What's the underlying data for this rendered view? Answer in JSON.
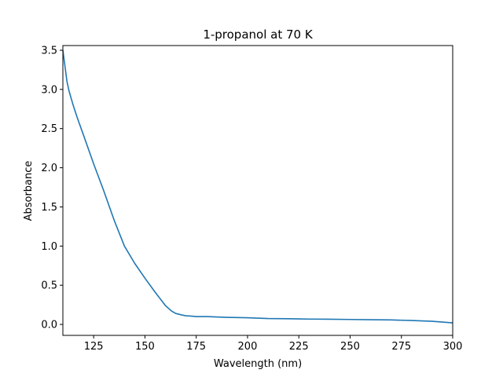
{
  "chart_data": {
    "type": "line",
    "title": "1-propanol at 70 K",
    "xlabel": "Wavelength (nm)",
    "ylabel": "Absorbance",
    "xlim": [
      110,
      300
    ],
    "ylim": [
      -0.14,
      3.56
    ],
    "xticks": [
      125,
      150,
      175,
      200,
      225,
      250,
      275,
      300
    ],
    "yticks": [
      0.0,
      0.5,
      1.0,
      1.5,
      2.0,
      2.5,
      3.0,
      3.5
    ],
    "xtick_labels": [
      "125",
      "150",
      "175",
      "200",
      "225",
      "250",
      "275",
      "300"
    ],
    "ytick_labels": [
      "0.0",
      "0.5",
      "1.0",
      "1.5",
      "2.0",
      "2.5",
      "3.0",
      "3.5"
    ],
    "grid": false,
    "line_color": "#1f77b4",
    "series": [
      {
        "x": [
          110,
          111,
          112,
          113,
          115,
          117,
          120,
          125,
          130,
          135,
          140,
          145,
          150,
          155,
          160,
          163,
          165,
          168,
          170,
          173,
          175,
          180,
          190,
          200,
          210,
          220,
          230,
          240,
          250,
          260,
          270,
          280,
          290,
          300
        ],
        "y": [
          3.5,
          3.3,
          3.1,
          2.98,
          2.8,
          2.64,
          2.42,
          2.05,
          1.7,
          1.33,
          1.0,
          0.78,
          0.59,
          0.41,
          0.24,
          0.17,
          0.14,
          0.12,
          0.11,
          0.105,
          0.1,
          0.1,
          0.09,
          0.085,
          0.075,
          0.072,
          0.068,
          0.066,
          0.063,
          0.06,
          0.057,
          0.05,
          0.04,
          0.02
        ]
      }
    ]
  }
}
